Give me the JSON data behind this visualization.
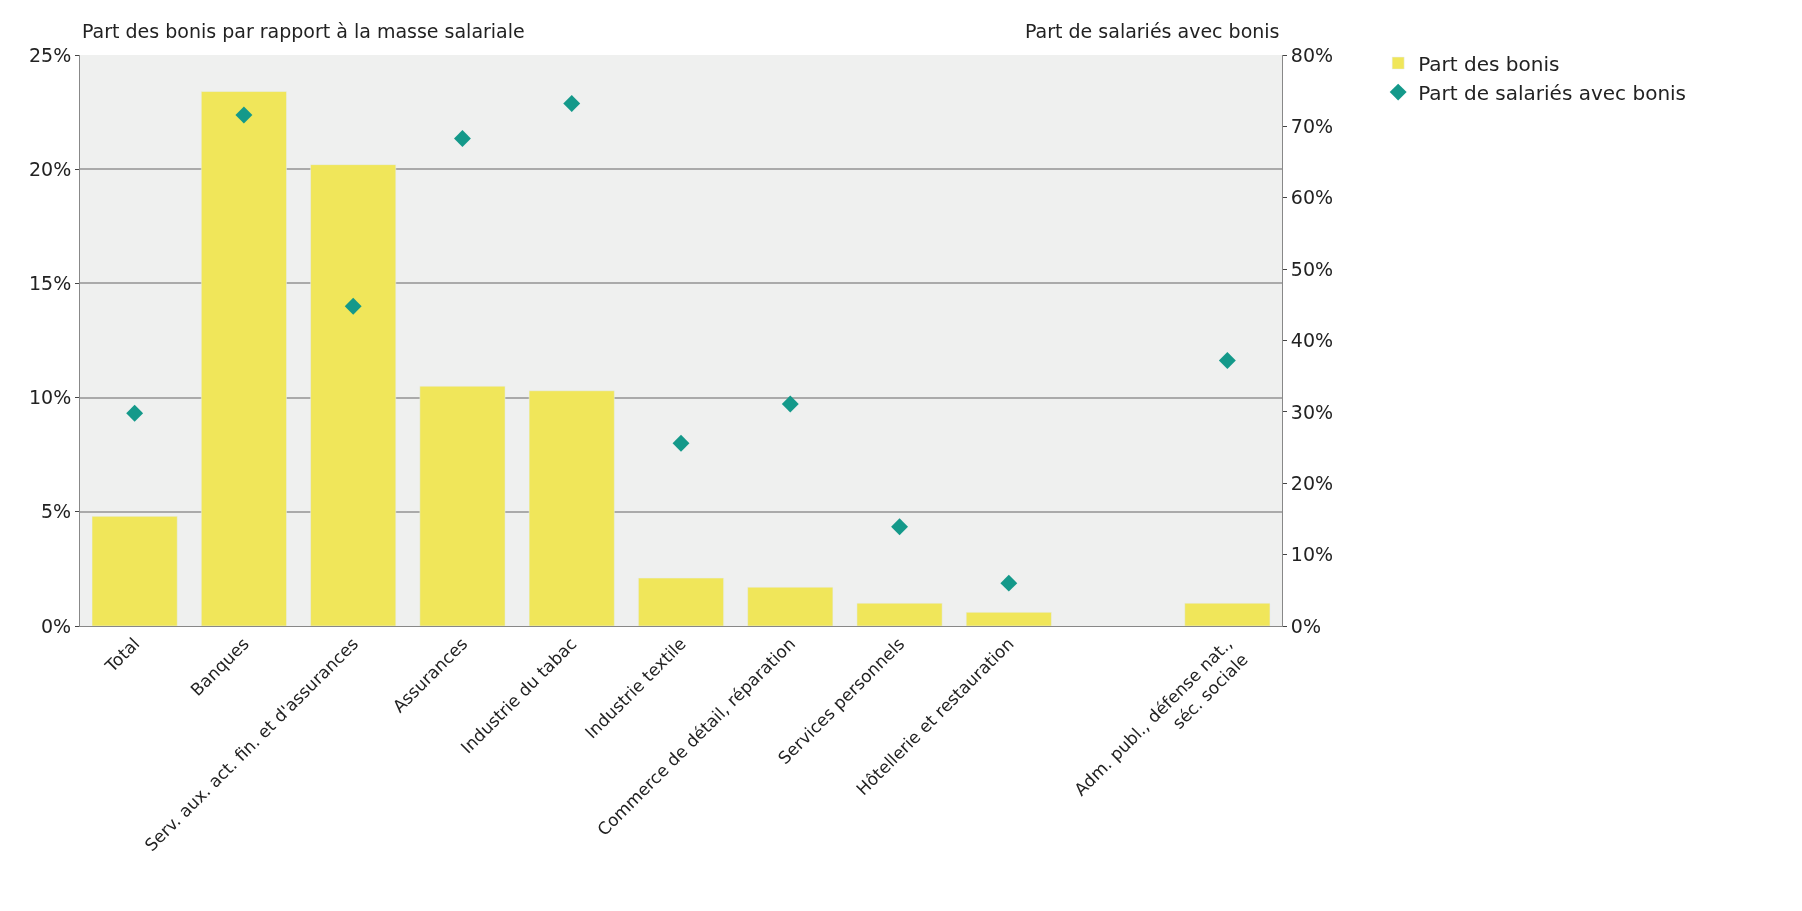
{
  "chart_data": {
    "type": "bar",
    "categories": [
      "Total",
      "Banques",
      "Serv. aux. act. fin. et d'assurances",
      "Assurances",
      "Industrie du tabac",
      "Industrie textile",
      "Commerce de détail, réparation",
      "Services personnels",
      "Hôtellerie et restauration",
      null,
      "Adm. publ., défense nat.,\nséc. sociale"
    ],
    "series": [
      {
        "name": "Part des bonis",
        "color": "#f0e65a",
        "values": [
          4.8,
          23.4,
          20.2,
          10.5,
          10.3,
          2.1,
          1.7,
          1.0,
          0.6,
          null,
          1.0
        ]
      },
      {
        "name": "Part de salariés avec bonis",
        "type": "scatter",
        "axis": "y2",
        "marker": "diamond",
        "color": "#14998a",
        "values": [
          29.8,
          71.6,
          44.8,
          68.3,
          73.2,
          25.6,
          31.1,
          13.9,
          6.0,
          null,
          37.2
        ]
      }
    ],
    "ylabel": "Part des bonis par rapport à la masse salariale",
    "y2label": "Part de salariés avec bonis",
    "ylim": [
      0,
      25
    ],
    "yticks": [
      {
        "value": 0,
        "label": "0%"
      },
      {
        "value": 5,
        "label": "5%"
      },
      {
        "value": 10,
        "label": "10%"
      },
      {
        "value": 15,
        "label": "15%"
      },
      {
        "value": 20,
        "label": "20%"
      },
      {
        "value": 25,
        "label": "25%"
      }
    ],
    "y2lim": [
      0,
      80
    ],
    "y2ticks": [
      {
        "value": 0,
        "label": "0%"
      },
      {
        "value": 10,
        "label": "10%"
      },
      {
        "value": 20,
        "label": "20%"
      },
      {
        "value": 30,
        "label": "30%"
      },
      {
        "value": 40,
        "label": "40%"
      },
      {
        "value": 50,
        "label": "50%"
      },
      {
        "value": 60,
        "label": "60%"
      },
      {
        "value": 70,
        "label": "70%"
      },
      {
        "value": 80,
        "label": "80%"
      }
    ],
    "grid": "y",
    "legend": "top right"
  }
}
